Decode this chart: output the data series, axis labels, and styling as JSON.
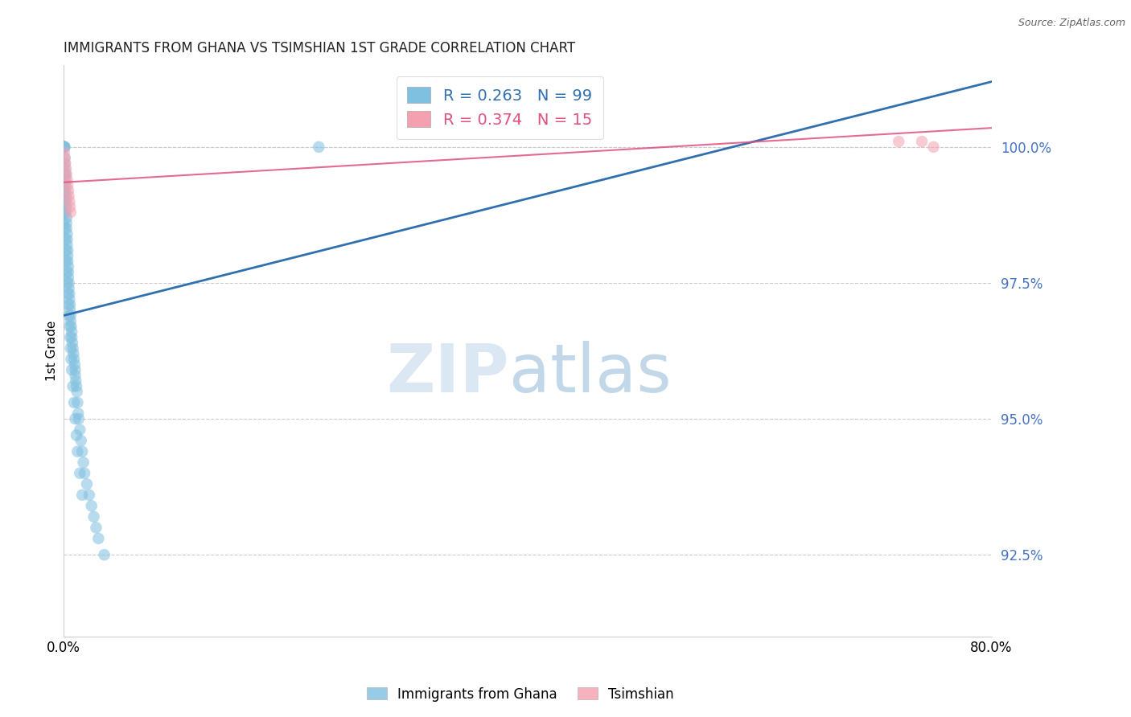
{
  "title": "IMMIGRANTS FROM GHANA VS TSIMSHIAN 1ST GRADE CORRELATION CHART",
  "source": "Source: ZipAtlas.com",
  "ylabel": "1st Grade",
  "xlim": [
    0.0,
    80.0
  ],
  "ylim": [
    91.0,
    101.5
  ],
  "yticks": [
    92.5,
    95.0,
    97.5,
    100.0
  ],
  "ytick_labels": [
    "92.5%",
    "95.0%",
    "97.5%",
    "100.0%"
  ],
  "xtick_positions": [
    0.0,
    16.0,
    32.0,
    48.0,
    64.0,
    80.0
  ],
  "xtick_labels": [
    "0.0%",
    "",
    "",
    "",
    "",
    "80.0%"
  ],
  "R_ghana": 0.263,
  "N_ghana": 99,
  "R_tsimshian": 0.374,
  "N_tsimshian": 15,
  "ghana_color": "#7fbfdf",
  "tsimshian_color": "#f4a0b0",
  "ghana_line_color": "#3070b0",
  "tsimshian_line_color": "#e05080",
  "legend_label_ghana": "Immigrants from Ghana",
  "legend_label_tsimshian": "Tsimshian",
  "ghana_line_x0": 0.0,
  "ghana_line_y0": 96.9,
  "ghana_line_x1": 80.0,
  "ghana_line_y1": 101.2,
  "tsimshian_line_x0": 0.0,
  "tsimshian_line_y0": 99.35,
  "tsimshian_line_x1": 80.0,
  "tsimshian_line_y1": 100.35,
  "ghana_x": [
    0.0,
    0.0,
    0.0,
    0.0,
    0.0,
    0.0,
    0.05,
    0.05,
    0.05,
    0.1,
    0.1,
    0.1,
    0.1,
    0.1,
    0.15,
    0.15,
    0.15,
    0.15,
    0.2,
    0.2,
    0.2,
    0.2,
    0.25,
    0.25,
    0.25,
    0.3,
    0.3,
    0.3,
    0.35,
    0.35,
    0.35,
    0.4,
    0.4,
    0.4,
    0.45,
    0.45,
    0.5,
    0.5,
    0.55,
    0.55,
    0.6,
    0.6,
    0.65,
    0.7,
    0.7,
    0.75,
    0.8,
    0.85,
    0.9,
    0.95,
    1.0,
    1.0,
    1.05,
    1.1,
    1.15,
    1.2,
    1.25,
    1.3,
    1.4,
    1.5,
    1.6,
    1.7,
    1.8,
    2.0,
    2.2,
    2.4,
    2.6,
    2.8,
    3.0,
    3.5,
    0.0,
    0.0,
    0.0,
    0.0,
    0.05,
    0.05,
    0.1,
    0.1,
    0.15,
    0.2,
    0.2,
    0.25,
    0.3,
    0.35,
    0.4,
    0.45,
    0.5,
    0.55,
    0.6,
    0.65,
    0.7,
    0.8,
    0.9,
    1.0,
    1.1,
    1.2,
    1.4,
    1.6,
    22.0
  ],
  "ghana_y": [
    100.0,
    100.0,
    100.0,
    100.0,
    100.0,
    100.0,
    100.0,
    100.0,
    100.0,
    100.0,
    99.8,
    99.7,
    99.6,
    99.5,
    99.5,
    99.4,
    99.3,
    99.2,
    99.1,
    99.0,
    98.9,
    98.8,
    98.7,
    98.6,
    98.5,
    98.4,
    98.3,
    98.2,
    98.1,
    98.0,
    97.9,
    97.8,
    97.7,
    97.6,
    97.5,
    97.4,
    97.3,
    97.2,
    97.1,
    97.0,
    96.9,
    96.8,
    96.7,
    96.6,
    96.5,
    96.4,
    96.3,
    96.2,
    96.1,
    96.0,
    95.9,
    95.8,
    95.7,
    95.6,
    95.5,
    95.3,
    95.1,
    95.0,
    94.8,
    94.6,
    94.4,
    94.2,
    94.0,
    93.8,
    93.6,
    93.4,
    93.2,
    93.0,
    92.8,
    92.5,
    99.2,
    99.0,
    98.8,
    98.6,
    99.3,
    99.1,
    98.8,
    98.5,
    98.3,
    98.1,
    97.9,
    97.7,
    97.5,
    97.3,
    97.1,
    96.9,
    96.7,
    96.5,
    96.3,
    96.1,
    95.9,
    95.6,
    95.3,
    95.0,
    94.7,
    94.4,
    94.0,
    93.6,
    100.0
  ],
  "tsimshian_x": [
    0.05,
    0.1,
    0.15,
    0.2,
    0.25,
    0.3,
    0.35,
    0.4,
    0.45,
    0.5,
    0.55,
    0.6,
    72.0,
    74.0,
    75.0
  ],
  "tsimshian_y": [
    99.9,
    99.8,
    99.7,
    99.6,
    99.5,
    99.4,
    99.3,
    99.2,
    99.1,
    99.0,
    98.9,
    98.8,
    100.1,
    100.1,
    100.0
  ]
}
